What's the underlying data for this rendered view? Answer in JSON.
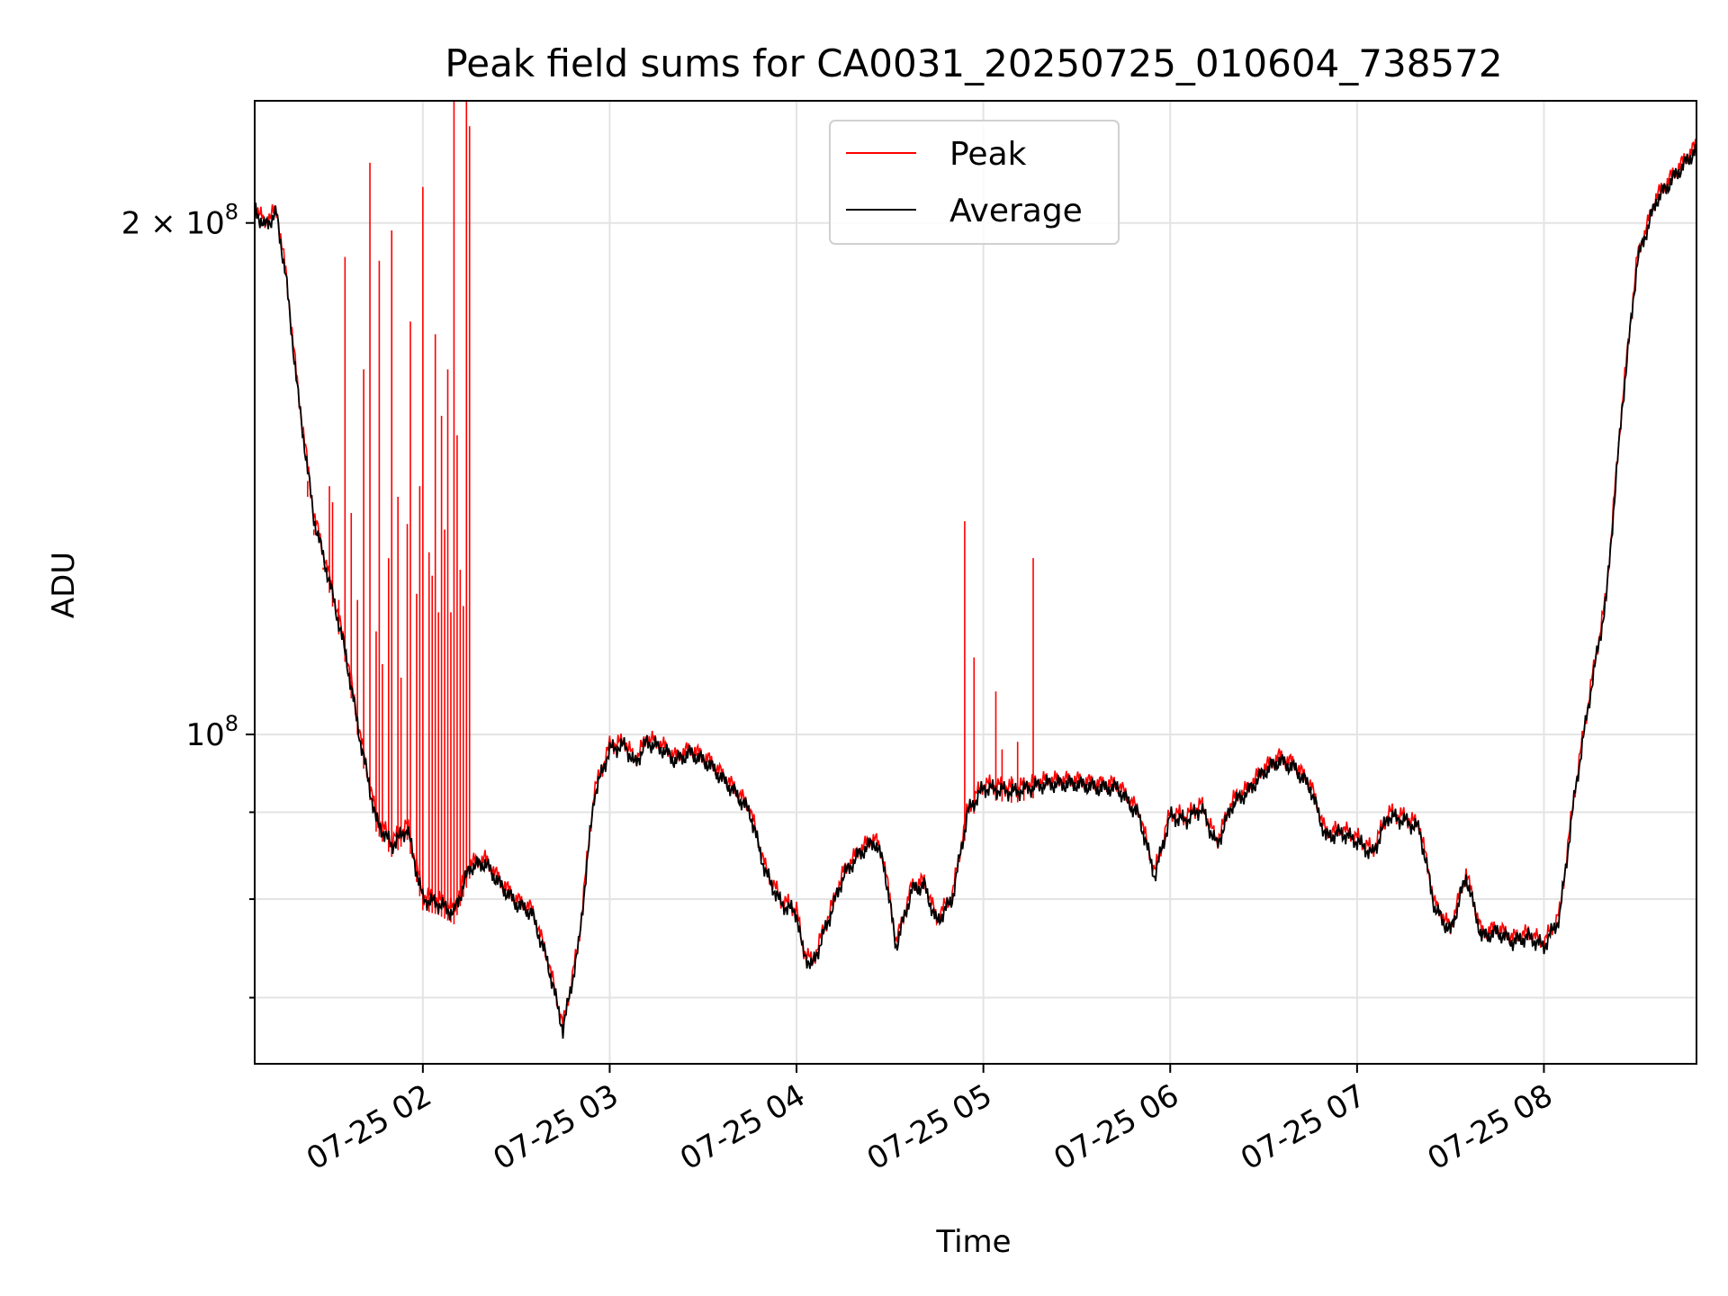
{
  "chart_data": {
    "type": "line",
    "title": "Peak field sums for CA0031_20250725_010604_738572",
    "xlabel": "Time",
    "ylabel": "ADU",
    "yscale": "log",
    "ylim": [
      64000000,
      236000000
    ],
    "xlim": [
      "2025-07-25 01:06",
      "2025-07-25 08:49"
    ],
    "grid": true,
    "legend_position": "top-center",
    "x_ticks": [
      "07-25 02",
      "07-25 03",
      "07-25 04",
      "07-25 05",
      "07-25 06",
      "07-25 07",
      "07-25 08"
    ],
    "x_tick_values": [
      "2025-07-25 02:00",
      "2025-07-25 03:00",
      "2025-07-25 04:00",
      "2025-07-25 05:00",
      "2025-07-25 06:00",
      "2025-07-25 07:00",
      "2025-07-25 08:00"
    ],
    "y_ticks_major": [
      {
        "value": 100000000,
        "label": "10",
        "exp": "8"
      },
      {
        "value": 200000000,
        "label": "2 × 10",
        "exp": "8"
      }
    ],
    "y_ticks_minor": [
      60000000,
      70000000,
      80000000,
      90000000
    ],
    "series": [
      {
        "name": "Average",
        "color": "#000000",
        "points": [
          [
            "2025-07-25 01:06",
            204000000
          ],
          [
            "2025-07-25 01:09",
            199000000
          ],
          [
            "2025-07-25 01:13",
            202500000
          ],
          [
            "2025-07-25 01:16",
            186000000
          ],
          [
            "2025-07-25 01:20",
            158000000
          ],
          [
            "2025-07-25 01:25",
            134000000
          ],
          [
            "2025-07-25 01:30",
            123000000
          ],
          [
            "2025-07-25 01:35",
            112000000
          ],
          [
            "2025-07-25 01:40",
            99000000
          ],
          [
            "2025-07-25 01:45",
            89000000
          ],
          [
            "2025-07-25 01:50",
            86000000
          ],
          [
            "2025-07-25 01:55",
            88000000
          ],
          [
            "2025-07-25 02:00",
            80000000
          ],
          [
            "2025-07-25 02:05",
            79500000
          ],
          [
            "2025-07-25 02:10",
            78500000
          ],
          [
            "2025-07-25 02:15",
            83500000
          ],
          [
            "2025-07-25 02:20",
            84000000
          ],
          [
            "2025-07-25 02:25",
            81500000
          ],
          [
            "2025-07-25 02:30",
            79500000
          ],
          [
            "2025-07-25 02:35",
            78500000
          ],
          [
            "2025-07-25 02:40",
            73500000
          ],
          [
            "2025-07-25 02:45",
            67000000
          ],
          [
            "2025-07-25 02:50",
            75000000
          ],
          [
            "2025-07-25 02:55",
            92000000
          ],
          [
            "2025-07-25 03:00",
            98000000
          ],
          [
            "2025-07-25 03:05",
            98500000
          ],
          [
            "2025-07-25 03:08",
            96000000
          ],
          [
            "2025-07-25 03:12",
            99000000
          ],
          [
            "2025-07-25 03:17",
            98000000
          ],
          [
            "2025-07-25 03:21",
            96500000
          ],
          [
            "2025-07-25 03:26",
            97500000
          ],
          [
            "2025-07-25 03:32",
            96000000
          ],
          [
            "2025-07-25 03:40",
            92500000
          ],
          [
            "2025-07-25 03:45",
            90000000
          ],
          [
            "2025-07-25 03:50",
            83000000
          ],
          [
            "2025-07-25 03:55",
            79500000
          ],
          [
            "2025-07-25 04:00",
            78500000
          ],
          [
            "2025-07-25 04:02",
            74500000
          ],
          [
            "2025-07-25 04:05",
            73000000
          ],
          [
            "2025-07-25 04:10",
            77500000
          ],
          [
            "2025-07-25 04:15",
            82500000
          ],
          [
            "2025-07-25 04:20",
            85000000
          ],
          [
            "2025-07-25 04:25",
            86500000
          ],
          [
            "2025-07-25 04:28",
            84000000
          ],
          [
            "2025-07-25 04:32",
            75000000
          ],
          [
            "2025-07-25 04:37",
            81000000
          ],
          [
            "2025-07-25 04:41",
            81500000
          ],
          [
            "2025-07-25 04:45",
            77500000
          ],
          [
            "2025-07-25 04:50",
            80000000
          ],
          [
            "2025-07-25 04:55",
            90000000
          ],
          [
            "2025-07-25 05:00",
            93000000
          ],
          [
            "2025-07-25 05:10",
            92500000
          ],
          [
            "2025-07-25 05:15",
            93000000
          ],
          [
            "2025-07-25 05:20",
            93500000
          ],
          [
            "2025-07-25 05:30",
            93500000
          ],
          [
            "2025-07-25 05:37",
            93000000
          ],
          [
            "2025-07-25 05:43",
            93000000
          ],
          [
            "2025-07-25 05:50",
            89500000
          ],
          [
            "2025-07-25 05:55",
            82500000
          ],
          [
            "2025-07-25 06:00",
            89500000
          ],
          [
            "2025-07-25 06:05",
            89000000
          ],
          [
            "2025-07-25 06:10",
            90500000
          ],
          [
            "2025-07-25 06:15",
            86000000
          ],
          [
            "2025-07-25 06:20",
            91000000
          ],
          [
            "2025-07-25 06:25",
            92500000
          ],
          [
            "2025-07-25 06:30",
            95000000
          ],
          [
            "2025-07-25 06:35",
            96500000
          ],
          [
            "2025-07-25 06:40",
            95500000
          ],
          [
            "2025-07-25 06:45",
            93000000
          ],
          [
            "2025-07-25 06:50",
            87000000
          ],
          [
            "2025-07-25 06:55",
            87500000
          ],
          [
            "2025-07-25 07:00",
            86500000
          ],
          [
            "2025-07-25 07:05",
            85000000
          ],
          [
            "2025-07-25 07:10",
            89500000
          ],
          [
            "2025-07-25 07:15",
            89000000
          ],
          [
            "2025-07-25 07:20",
            88000000
          ],
          [
            "2025-07-25 07:25",
            79000000
          ],
          [
            "2025-07-25 07:30",
            76500000
          ],
          [
            "2025-07-25 07:35",
            82500000
          ],
          [
            "2025-07-25 07:40",
            76000000
          ],
          [
            "2025-07-25 07:45",
            76500000
          ],
          [
            "2025-07-25 07:50",
            75500000
          ],
          [
            "2025-07-25 07:55",
            76000000
          ],
          [
            "2025-07-25 08:00",
            75000000
          ],
          [
            "2025-07-25 08:05",
            78000000
          ],
          [
            "2025-07-25 08:10",
            92500000
          ],
          [
            "2025-07-25 08:15",
            106000000
          ],
          [
            "2025-07-25 08:20",
            120000000
          ],
          [
            "2025-07-25 08:25",
            155000000
          ],
          [
            "2025-07-25 08:30",
            190000000
          ],
          [
            "2025-07-25 08:36",
            206000000
          ],
          [
            "2025-07-25 08:42",
            213000000
          ],
          [
            "2025-07-25 08:49",
            221000000
          ]
        ]
      },
      {
        "name": "Peak",
        "color": "#ff0000",
        "offset_ratio": 1.006,
        "spikes": [
          [
            "2025-07-25 01:23",
            138000000
          ],
          [
            "2025-07-25 01:25",
            131000000
          ],
          [
            "2025-07-25 01:28",
            125000000
          ],
          [
            "2025-07-25 01:30",
            140000000
          ],
          [
            "2025-07-25 01:31",
            137000000
          ],
          [
            "2025-07-25 01:33",
            120000000
          ],
          [
            "2025-07-25 01:35",
            191000000
          ],
          [
            "2025-07-25 01:37",
            135000000
          ],
          [
            "2025-07-25 01:39",
            120000000
          ],
          [
            "2025-07-25 01:41",
            164000000
          ],
          [
            "2025-07-25 01:43",
            217000000
          ],
          [
            "2025-07-25 01:45",
            115000000
          ],
          [
            "2025-07-25 01:46",
            190000000
          ],
          [
            "2025-07-25 01:47",
            110000000
          ],
          [
            "2025-07-25 01:49",
            127000000
          ],
          [
            "2025-07-25 01:50",
            198000000
          ],
          [
            "2025-07-25 01:52",
            138000000
          ],
          [
            "2025-07-25 01:53",
            108000000
          ],
          [
            "2025-07-25 01:55",
            133000000
          ],
          [
            "2025-07-25 01:56",
            175000000
          ],
          [
            "2025-07-25 01:58",
            121000000
          ],
          [
            "2025-07-25 01:59",
            140000000
          ],
          [
            "2025-07-25 02:00",
            210000000
          ],
          [
            "2025-07-25 02:02",
            128000000
          ],
          [
            "2025-07-25 02:03",
            124000000
          ],
          [
            "2025-07-25 02:04",
            172000000
          ],
          [
            "2025-07-25 02:05",
            118000000
          ],
          [
            "2025-07-25 02:06",
            154000000
          ],
          [
            "2025-07-25 02:07",
            132000000
          ],
          [
            "2025-07-25 02:08",
            164000000
          ],
          [
            "2025-07-25 02:09",
            118000000
          ],
          [
            "2025-07-25 02:10",
            236000000
          ],
          [
            "2025-07-25 02:11",
            150000000
          ],
          [
            "2025-07-25 02:12",
            125000000
          ],
          [
            "2025-07-25 02:13",
            119000000
          ],
          [
            "2025-07-25 02:14",
            236000000
          ],
          [
            "2025-07-25 02:15",
            228000000
          ],
          [
            "2025-07-25 04:54",
            133500000
          ],
          [
            "2025-07-25 04:57",
            111000000
          ],
          [
            "2025-07-25 05:04",
            106000000
          ],
          [
            "2025-07-25 05:06",
            98000000
          ],
          [
            "2025-07-25 05:09",
            94500000
          ],
          [
            "2025-07-25 05:11",
            99000000
          ],
          [
            "2025-07-25 05:13",
            94000000
          ],
          [
            "2025-07-25 05:16",
            127000000
          ]
        ]
      }
    ]
  }
}
